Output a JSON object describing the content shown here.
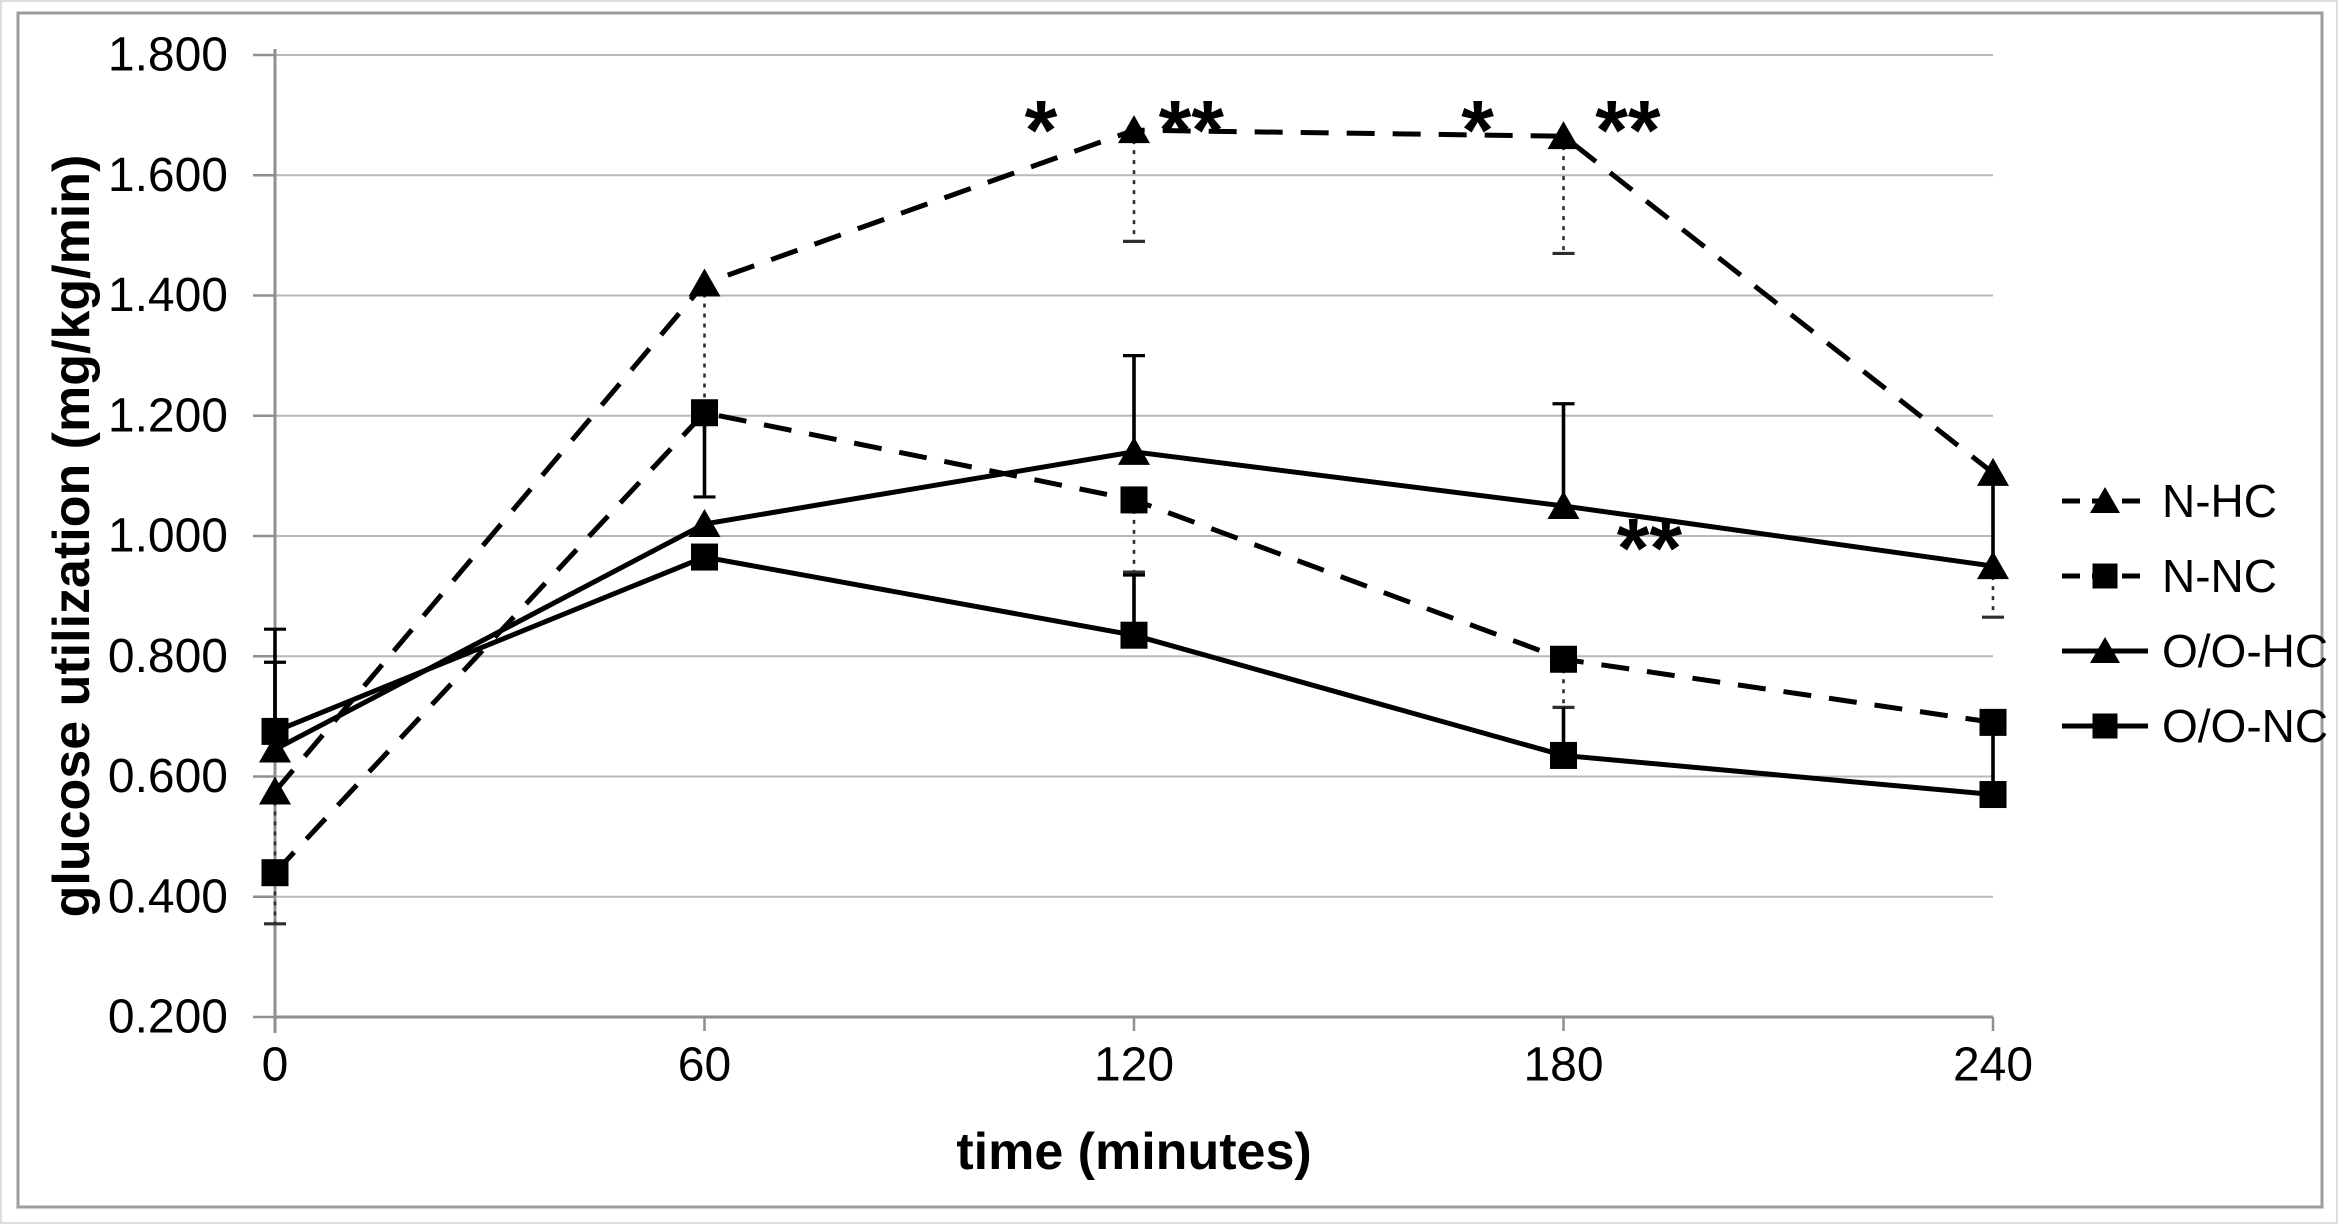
{
  "figure": {
    "background": "#ffffff",
    "border_color": "#9e9e9e"
  },
  "chart_data": {
    "type": "line",
    "title": "",
    "xlabel": "time (minutes)",
    "ylabel": "glucose utilization (mg/kg/min)",
    "xlim": [
      0,
      240
    ],
    "ylim": [
      0.2,
      1.8
    ],
    "grid": true,
    "legend_position": "right",
    "x": [
      0,
      60,
      120,
      180,
      240
    ],
    "xticks": [
      {
        "v": 0,
        "label": "0"
      },
      {
        "v": 60,
        "label": "60"
      },
      {
        "v": 120,
        "label": "120"
      },
      {
        "v": 180,
        "label": "180"
      },
      {
        "v": 240,
        "label": "240"
      }
    ],
    "yticks": [
      {
        "v": 1.8,
        "label": "1.800"
      },
      {
        "v": 1.6,
        "label": "1.600"
      },
      {
        "v": 1.4,
        "label": "1.400"
      },
      {
        "v": 1.2,
        "label": "1.200"
      },
      {
        "v": 1.0,
        "label": "1.000"
      },
      {
        "v": 0.8,
        "label": "0.800"
      },
      {
        "v": 0.6,
        "label": "0.600"
      },
      {
        "v": 0.4,
        "label": "0.400"
      },
      {
        "v": 0.2,
        "label": "0.200"
      }
    ],
    "series": [
      {
        "name": "N-HC",
        "line_style": "dashed",
        "marker": "triangle",
        "values": [
          0.575,
          1.42,
          1.675,
          1.665,
          1.105
        ]
      },
      {
        "name": "N-NC",
        "line_style": "dashed",
        "marker": "square",
        "values": [
          0.44,
          1.205,
          1.06,
          0.795,
          0.69
        ]
      },
      {
        "name": "O/O-HC",
        "line_style": "solid",
        "marker": "triangle",
        "values": [
          0.645,
          1.02,
          1.14,
          1.05,
          0.95
        ]
      },
      {
        "name": "O/O-NC",
        "line_style": "solid",
        "marker": "square",
        "values": [
          0.675,
          0.965,
          0.835,
          0.635,
          0.57
        ]
      }
    ],
    "error_bars": [
      {
        "x": 0,
        "y1": 0.575,
        "y2": 0.355,
        "style": "dotted",
        "cap": true
      },
      {
        "x": 0,
        "y1": 0.675,
        "y2": 0.845,
        "style": "solid",
        "cap": true
      },
      {
        "x": 0,
        "y1": 0.645,
        "y2": 0.79,
        "style": "solid",
        "cap": true
      },
      {
        "x": 60,
        "y1": 1.42,
        "y2": 1.205,
        "style": "dotted",
        "cap": false
      },
      {
        "x": 60,
        "y1": 1.205,
        "y2": 1.065,
        "style": "solid",
        "cap": true
      },
      {
        "x": 120,
        "y1": 1.675,
        "y2": 1.49,
        "style": "dotted",
        "cap": true
      },
      {
        "x": 120,
        "y1": 1.14,
        "y2": 1.3,
        "style": "solid",
        "cap": true
      },
      {
        "x": 120,
        "y1": 1.06,
        "y2": 0.94,
        "style": "dotted",
        "cap": true
      },
      {
        "x": 120,
        "y1": 0.835,
        "y2": 0.935,
        "style": "solid",
        "cap": true
      },
      {
        "x": 180,
        "y1": 1.665,
        "y2": 1.47,
        "style": "dotted",
        "cap": true
      },
      {
        "x": 180,
        "y1": 1.05,
        "y2": 1.22,
        "style": "solid",
        "cap": true
      },
      {
        "x": 180,
        "y1": 0.795,
        "y2": 0.715,
        "style": "dotted",
        "cap": true
      },
      {
        "x": 180,
        "y1": 0.715,
        "y2": 0.635,
        "style": "solid",
        "cap": false
      },
      {
        "x": 240,
        "y1": 1.105,
        "y2": 0.95,
        "style": "solid",
        "cap": false
      },
      {
        "x": 240,
        "y1": 0.95,
        "y2": 0.865,
        "style": "dotted",
        "cap": true
      },
      {
        "x": 240,
        "y1": 0.69,
        "y2": 0.575,
        "style": "solid",
        "cap": false
      }
    ],
    "annotations": [
      {
        "text": "*",
        "x": 107,
        "y": 1.7
      },
      {
        "text": "**",
        "x": 128,
        "y": 1.7
      },
      {
        "text": "*",
        "x": 168,
        "y": 1.7
      },
      {
        "text": "**",
        "x": 189,
        "y": 1.7
      },
      {
        "text": "**",
        "x": 192,
        "y": 1.005
      }
    ],
    "colors": {
      "series": "#000000",
      "grid": "#b8b8b8",
      "axis": "#8f8f8f",
      "border": "#9e9e9e"
    }
  }
}
